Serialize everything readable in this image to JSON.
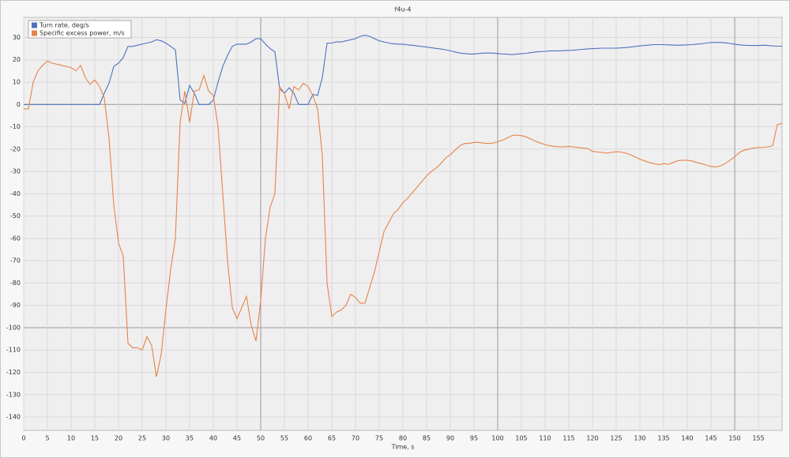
{
  "chart_data": {
    "type": "line",
    "title": "f4u-4",
    "x_label": "Time, s",
    "x": [
      0,
      1,
      2,
      3,
      4,
      5,
      6,
      7,
      8,
      9,
      10,
      11,
      12,
      13,
      14,
      15,
      16,
      17,
      18,
      19,
      20,
      21,
      22,
      23,
      24,
      25,
      26,
      27,
      28,
      29,
      30,
      31,
      32,
      33,
      34,
      35,
      36,
      37,
      38,
      39,
      40,
      41,
      42,
      43,
      44,
      45,
      46,
      47,
      48,
      49,
      50,
      51,
      52,
      53,
      54,
      55,
      56,
      57,
      58,
      59,
      60,
      61,
      62,
      63,
      64,
      65,
      66,
      67,
      68,
      69,
      70,
      71,
      72,
      73,
      74,
      75,
      76,
      77,
      78,
      79,
      80,
      81,
      82,
      83,
      84,
      85,
      86,
      87,
      88,
      89,
      90,
      91,
      92,
      93,
      94,
      95,
      96,
      97,
      98,
      99,
      100,
      101,
      102,
      103,
      104,
      105,
      106,
      107,
      108,
      109,
      110,
      111,
      112,
      113,
      114,
      115,
      116,
      117,
      118,
      119,
      120,
      121,
      122,
      123,
      124,
      125,
      126,
      127,
      128,
      129,
      130,
      131,
      132,
      133,
      134,
      135,
      136,
      137,
      138,
      139,
      140,
      141,
      142,
      143,
      144,
      145,
      146,
      147,
      148,
      149,
      150,
      151,
      152,
      153,
      154,
      155,
      156,
      157,
      158,
      159,
      160
    ],
    "series": [
      {
        "name": "Turn rate, deg/s",
        "color": "#4e72c0",
        "values": [
          0,
          0,
          0,
          0,
          0,
          0,
          0,
          0,
          0,
          0,
          0,
          0,
          0,
          0,
          0,
          0,
          0,
          5,
          9.5,
          17,
          18.5,
          21,
          26,
          26,
          26.5,
          27,
          27.5,
          28,
          29,
          28.5,
          27.5,
          26,
          24.5,
          2,
          0.5,
          8.5,
          5,
          0,
          0,
          0,
          2,
          10,
          17,
          22,
          26,
          27,
          27,
          27,
          28,
          29.5,
          29.5,
          27,
          25,
          23.5,
          7,
          5,
          7.5,
          5,
          0,
          0,
          0,
          4.5,
          4,
          12,
          27.5,
          27.5,
          28,
          28,
          28.5,
          29,
          29.5,
          30.5,
          31,
          30.5,
          29.5,
          28.5,
          28,
          27.5,
          27.2,
          27,
          27,
          26.7,
          26.5,
          26.2,
          26,
          25.7,
          25.4,
          25.1,
          24.8,
          24.5,
          24,
          23.5,
          23,
          22.8,
          22.6,
          22.6,
          22.8,
          23,
          23,
          23,
          22.8,
          22.6,
          22.5,
          22.3,
          22.5,
          22.7,
          22.9,
          23.2,
          23.5,
          23.7,
          23.8,
          24,
          24,
          24,
          24.1,
          24.2,
          24.3,
          24.5,
          24.7,
          24.9,
          25,
          25.1,
          25.2,
          25.2,
          25.2,
          25.2,
          25.3,
          25.5,
          25.7,
          26,
          26.2,
          26.4,
          26.6,
          26.8,
          26.8,
          26.8,
          26.7,
          26.6,
          26.5,
          26.6,
          26.7,
          26.8,
          27,
          27.2,
          27.5,
          27.7,
          27.8,
          27.8,
          27.6,
          27.3,
          27,
          26.7,
          26.5,
          26.4,
          26.4,
          26.4,
          26.5,
          26.4,
          26.2,
          26.1,
          26.1
        ]
      },
      {
        "name": "Specific excess power, m/s",
        "color": "#e8834a",
        "values": [
          -2,
          -2,
          10,
          15,
          17.5,
          19.5,
          18.5,
          18,
          17.5,
          17,
          16.5,
          15,
          17.5,
          12,
          9,
          11,
          8,
          3,
          -15,
          -45,
          -62,
          -68,
          -107,
          -109,
          -109,
          -110,
          -104,
          -108,
          -122,
          -112,
          -92,
          -74,
          -60,
          -8,
          6,
          -8,
          6,
          6.5,
          13,
          6,
          4,
          -10,
          -40,
          -70,
          -91,
          -96,
          -91,
          -86,
          -99,
          -106,
          -88,
          -60,
          -46,
          -40,
          8,
          5,
          -2,
          8,
          6.5,
          9.5,
          8,
          4,
          -2,
          -23,
          -80,
          -95,
          -93,
          -92,
          -90,
          -85,
          -86.5,
          -89,
          -89,
          -82,
          -75,
          -66,
          -57,
          -53,
          -49,
          -47,
          -44,
          -42,
          -39.5,
          -37,
          -34.5,
          -32,
          -30,
          -28.5,
          -26.5,
          -24,
          -22.5,
          -20.5,
          -18.5,
          -17.5,
          -17.5,
          -17,
          -17,
          -17.3,
          -17.5,
          -17.3,
          -16.7,
          -16,
          -15,
          -14,
          -13.7,
          -14,
          -14.5,
          -15.5,
          -16.5,
          -17.3,
          -18,
          -18.5,
          -18.8,
          -19,
          -19,
          -18.8,
          -19,
          -19.3,
          -19.5,
          -19.8,
          -21,
          -21.3,
          -21.5,
          -21.8,
          -21.5,
          -21.2,
          -21.3,
          -21.8,
          -22.5,
          -23.5,
          -24.5,
          -25.3,
          -26,
          -26.5,
          -27,
          -26.5,
          -26.8,
          -26,
          -25.2,
          -25,
          -25,
          -25.3,
          -26,
          -26.5,
          -27.2,
          -27.8,
          -28,
          -27.5,
          -26.5,
          -25,
          -23.5,
          -21.5,
          -20.5,
          -20,
          -19.5,
          -19.3,
          -19.2,
          -19,
          -18.5,
          -9,
          -8.5
        ]
      }
    ],
    "xlim": [
      0,
      160
    ],
    "ylim": [
      -146,
      39
    ],
    "xticks": [
      0,
      5,
      10,
      15,
      20,
      25,
      30,
      35,
      40,
      45,
      50,
      55,
      60,
      65,
      70,
      75,
      80,
      85,
      90,
      95,
      100,
      105,
      110,
      115,
      120,
      125,
      130,
      135,
      140,
      145,
      150,
      155
    ],
    "yticks": [
      -140,
      -130,
      -120,
      -110,
      -100,
      -90,
      -80,
      -70,
      -60,
      -50,
      -40,
      -30,
      -20,
      -10,
      0,
      10,
      20,
      30
    ],
    "grid": true,
    "legend": "upper left"
  }
}
